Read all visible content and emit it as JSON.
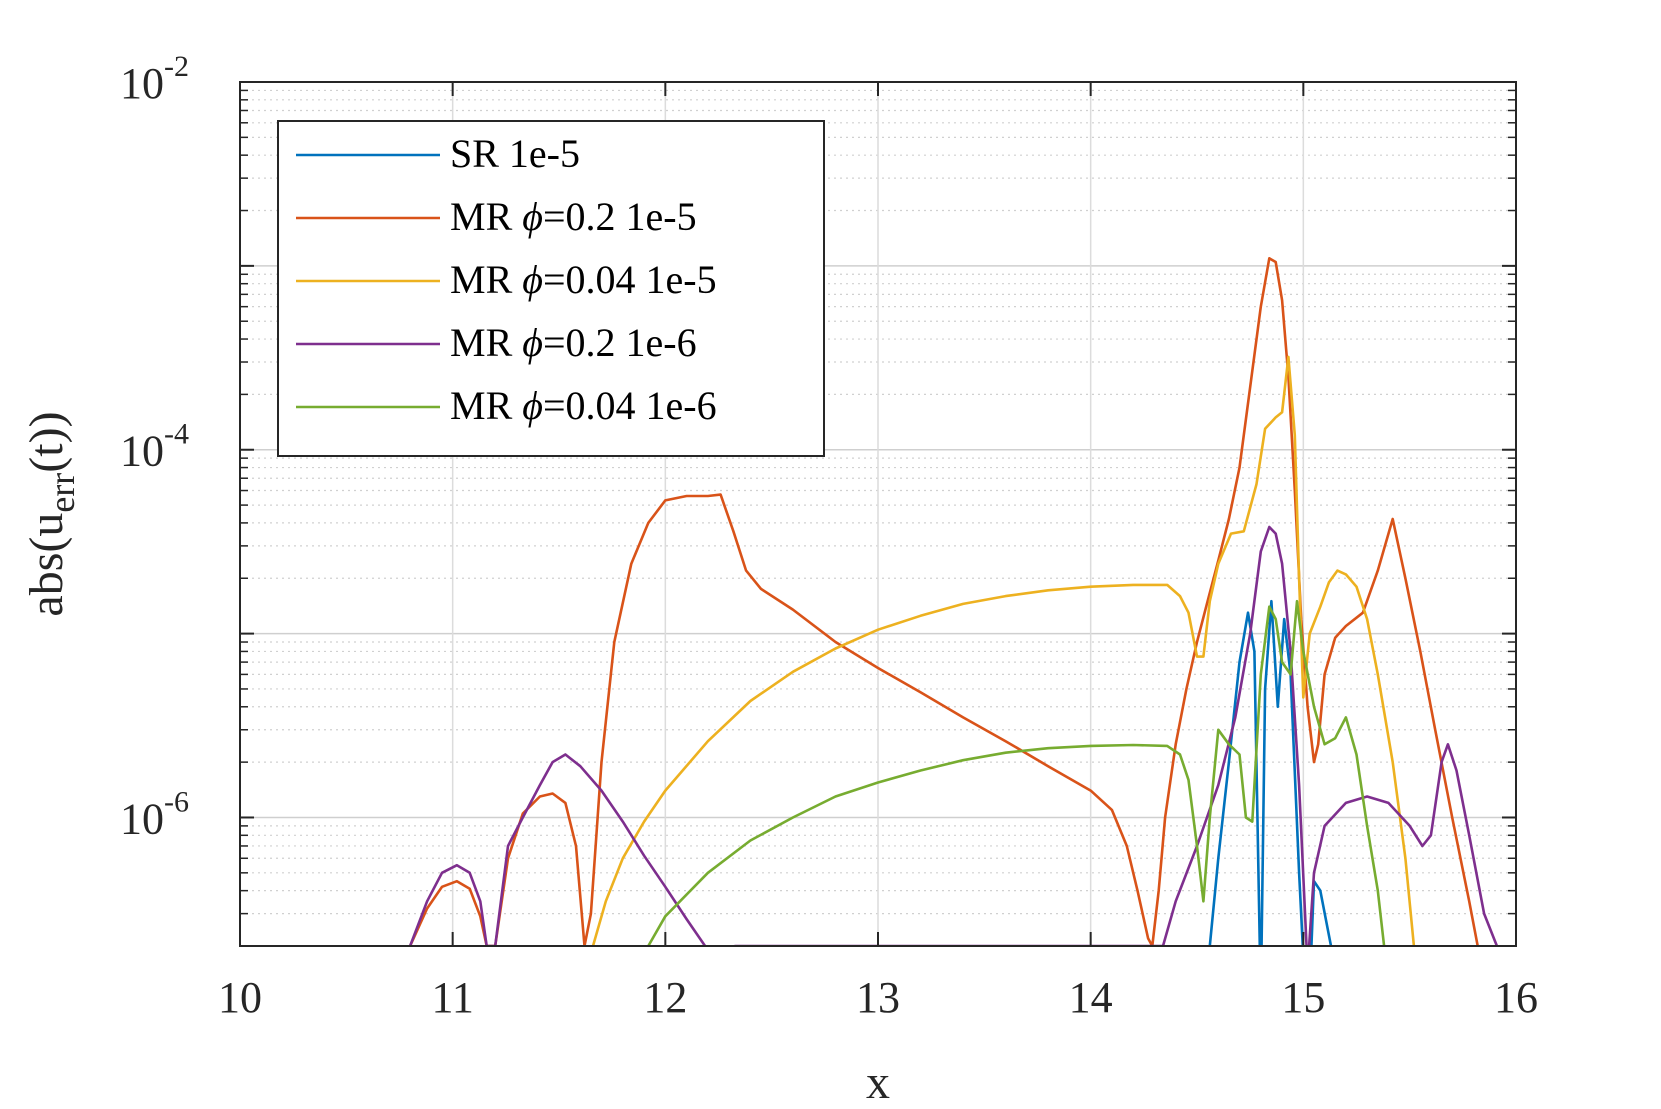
{
  "chart_data": {
    "type": "line",
    "title": "",
    "xlabel": "x",
    "ylabel": {
      "prefix": "abs(u",
      "subscript": "err",
      "suffix": "(t))"
    },
    "xlim": [
      10,
      16
    ],
    "ylim": [
      2e-07,
      0.01
    ],
    "yscale": "log",
    "grid": true,
    "minor_grid": true,
    "legend_position": "top-left",
    "x_ticks": [
      "10",
      "11",
      "12",
      "13",
      "14",
      "15",
      "16"
    ],
    "y_ticks": [
      {
        "base": "10",
        "exp": "-6",
        "value": 1e-06
      },
      {
        "base": "10",
        "exp": "-4",
        "value": 0.0001
      },
      {
        "base": "10",
        "exp": "-2",
        "value": 0.01
      }
    ],
    "series": [
      {
        "name": "SR 1e-5",
        "legend_parts": [
          "SR 1e-5"
        ],
        "color": "#0072BD",
        "points": [
          [
            14.56,
            2e-07
          ],
          [
            14.6,
            6e-07
          ],
          [
            14.65,
            2e-06
          ],
          [
            14.7,
            7e-06
          ],
          [
            14.74,
            1.3e-05
          ],
          [
            14.77,
            8e-06
          ],
          [
            14.8,
            1e-07
          ],
          [
            14.82,
            5e-06
          ],
          [
            14.85,
            1.5e-05
          ],
          [
            14.88,
            4e-06
          ],
          [
            14.91,
            1.2e-05
          ],
          [
            14.94,
            6e-06
          ],
          [
            14.98,
            5e-07
          ],
          [
            15.02,
            6e-08
          ],
          [
            15.05,
            4.5e-07
          ],
          [
            15.08,
            4e-07
          ],
          [
            15.13,
            2e-07
          ],
          [
            15.15,
            1e-07
          ]
        ]
      },
      {
        "name": "MR ϕ=0.2 1e-5",
        "legend_parts": [
          "MR ",
          "ϕ",
          "=0.2 1e-5"
        ],
        "color": "#D95319",
        "points": [
          [
            10.8,
            2e-07
          ],
          [
            10.88,
            3.2e-07
          ],
          [
            10.95,
            4.2e-07
          ],
          [
            11.02,
            4.5e-07
          ],
          [
            11.08,
            4.1e-07
          ],
          [
            11.13,
            2.9e-07
          ],
          [
            11.16,
            2e-07
          ],
          [
            11.2,
            2e-07
          ],
          [
            11.26,
            6e-07
          ],
          [
            11.33,
            1.05e-06
          ],
          [
            11.41,
            1.3e-06
          ],
          [
            11.47,
            1.35e-06
          ],
          [
            11.53,
            1.2e-06
          ],
          [
            11.58,
            7e-07
          ],
          [
            11.62,
            2e-07
          ],
          [
            11.65,
            3e-07
          ],
          [
            11.7,
            2e-06
          ],
          [
            11.76,
            9e-06
          ],
          [
            11.84,
            2.4e-05
          ],
          [
            11.92,
            4e-05
          ],
          [
            12.0,
            5.3e-05
          ],
          [
            12.1,
            5.6e-05
          ],
          [
            12.2,
            5.6e-05
          ],
          [
            12.26,
            5.7e-05
          ],
          [
            12.32,
            3.6e-05
          ],
          [
            12.38,
            2.2e-05
          ],
          [
            12.45,
            1.75e-05
          ],
          [
            12.6,
            1.35e-05
          ],
          [
            12.8,
            9e-06
          ],
          [
            13.0,
            6.5e-06
          ],
          [
            13.2,
            4.8e-06
          ],
          [
            13.4,
            3.5e-06
          ],
          [
            13.6,
            2.6e-06
          ],
          [
            13.8,
            1.9e-06
          ],
          [
            14.0,
            1.4e-06
          ],
          [
            14.1,
            1.1e-06
          ],
          [
            14.17,
            7e-07
          ],
          [
            14.22,
            4e-07
          ],
          [
            14.27,
            2.2e-07
          ],
          [
            14.29,
            2e-07
          ],
          [
            14.32,
            4e-07
          ],
          [
            14.35,
            1e-06
          ],
          [
            14.4,
            2.5e-06
          ],
          [
            14.45,
            5e-06
          ],
          [
            14.5,
            9e-06
          ],
          [
            14.55,
            1.5e-05
          ],
          [
            14.6,
            2.5e-05
          ],
          [
            14.65,
            4.2e-05
          ],
          [
            14.7,
            8e-05
          ],
          [
            14.75,
            0.00022
          ],
          [
            14.8,
            0.0006
          ],
          [
            14.84,
            0.0011
          ],
          [
            14.87,
            0.00105
          ],
          [
            14.9,
            0.00065
          ],
          [
            14.93,
            0.00025
          ],
          [
            14.96,
            6e-05
          ],
          [
            14.99,
            1.2e-05
          ],
          [
            15.02,
            4e-06
          ],
          [
            15.05,
            2e-06
          ],
          [
            15.07,
            2.5e-06
          ],
          [
            15.1,
            6e-06
          ],
          [
            15.15,
            9.5e-06
          ],
          [
            15.2,
            1.1e-05
          ],
          [
            15.28,
            1.3e-05
          ],
          [
            15.35,
            2.2e-05
          ],
          [
            15.42,
            4.2e-05
          ],
          [
            15.48,
            2e-05
          ],
          [
            15.55,
            8e-06
          ],
          [
            15.62,
            3e-06
          ],
          [
            15.7,
            1e-06
          ],
          [
            15.78,
            3.5e-07
          ],
          [
            15.82,
            2e-07
          ]
        ]
      },
      {
        "name": "MR ϕ=0.04 1e-5",
        "legend_parts": [
          "MR ",
          "ϕ",
          "=0.04 1e-5"
        ],
        "color": "#EDB120",
        "points": [
          [
            11.66,
            2e-07
          ],
          [
            11.72,
            3.5e-07
          ],
          [
            11.8,
            6e-07
          ],
          [
            11.9,
            9.5e-07
          ],
          [
            12.0,
            1.4e-06
          ],
          [
            12.2,
            2.6e-06
          ],
          [
            12.4,
            4.3e-06
          ],
          [
            12.6,
            6.2e-06
          ],
          [
            12.8,
            8.3e-06
          ],
          [
            13.0,
            1.05e-05
          ],
          [
            13.2,
            1.25e-05
          ],
          [
            13.4,
            1.45e-05
          ],
          [
            13.6,
            1.6e-05
          ],
          [
            13.8,
            1.72e-05
          ],
          [
            14.0,
            1.8e-05
          ],
          [
            14.2,
            1.84e-05
          ],
          [
            14.36,
            1.84e-05
          ],
          [
            14.42,
            1.6e-05
          ],
          [
            14.46,
            1.3e-05
          ],
          [
            14.5,
            7.5e-06
          ],
          [
            14.53,
            7.5e-06
          ],
          [
            14.56,
            1.5e-05
          ],
          [
            14.6,
            2.4e-05
          ],
          [
            14.66,
            3.5e-05
          ],
          [
            14.72,
            3.6e-05
          ],
          [
            14.78,
            6.5e-05
          ],
          [
            14.82,
            0.00013
          ],
          [
            14.87,
            0.00015
          ],
          [
            14.9,
            0.00016
          ],
          [
            14.93,
            0.00032
          ],
          [
            14.96,
            0.00012
          ],
          [
            14.98,
            2e-05
          ],
          [
            15.0,
            4.5e-06
          ],
          [
            15.03,
            1e-05
          ],
          [
            15.08,
            1.4e-05
          ],
          [
            15.12,
            1.9e-05
          ],
          [
            15.16,
            2.2e-05
          ],
          [
            15.2,
            2.1e-05
          ],
          [
            15.25,
            1.8e-05
          ],
          [
            15.3,
            1.2e-05
          ],
          [
            15.35,
            6e-06
          ],
          [
            15.42,
            2e-06
          ],
          [
            15.48,
            6e-07
          ],
          [
            15.52,
            2e-07
          ]
        ]
      },
      {
        "name": "MR ϕ=0.2 1e-6",
        "legend_parts": [
          "MR ",
          "ϕ",
          "=0.2 1e-6"
        ],
        "color": "#7E2F8E",
        "points": [
          [
            10.8,
            2e-07
          ],
          [
            10.88,
            3.5e-07
          ],
          [
            10.95,
            5e-07
          ],
          [
            11.02,
            5.5e-07
          ],
          [
            11.08,
            5e-07
          ],
          [
            11.13,
            3.5e-07
          ],
          [
            11.16,
            2e-07
          ],
          [
            11.2,
            2e-07
          ],
          [
            11.26,
            7e-07
          ],
          [
            11.33,
            1e-06
          ],
          [
            11.41,
            1.5e-06
          ],
          [
            11.47,
            2e-06
          ],
          [
            11.53,
            2.2e-06
          ],
          [
            11.6,
            1.9e-06
          ],
          [
            11.7,
            1.4e-06
          ],
          [
            11.8,
            9.5e-07
          ],
          [
            11.9,
            6.2e-07
          ],
          [
            12.0,
            4.2e-07
          ],
          [
            12.1,
            2.8e-07
          ],
          [
            12.2,
            1.9e-07
          ],
          [
            12.33,
            2e-07
          ],
          [
            14.34,
            2e-07
          ],
          [
            14.4,
            3.5e-07
          ],
          [
            14.5,
            7e-07
          ],
          [
            14.6,
            1.5e-06
          ],
          [
            14.68,
            3.5e-06
          ],
          [
            14.75,
            1e-05
          ],
          [
            14.8,
            2.8e-05
          ],
          [
            14.84,
            3.8e-05
          ],
          [
            14.87,
            3.5e-05
          ],
          [
            14.9,
            2.4e-05
          ],
          [
            14.94,
            8e-06
          ],
          [
            14.98,
            1.5e-06
          ],
          [
            15.02,
            1.5e-07
          ],
          [
            15.05,
            5e-07
          ],
          [
            15.1,
            9e-07
          ],
          [
            15.2,
            1.2e-06
          ],
          [
            15.3,
            1.3e-06
          ],
          [
            15.4,
            1.2e-06
          ],
          [
            15.5,
            9e-07
          ],
          [
            15.56,
            7e-07
          ],
          [
            15.6,
            8e-07
          ],
          [
            15.65,
            2e-06
          ],
          [
            15.68,
            2.5e-06
          ],
          [
            15.72,
            1.8e-06
          ],
          [
            15.78,
            8e-07
          ],
          [
            15.85,
            3e-07
          ],
          [
            15.91,
            2e-07
          ]
        ]
      },
      {
        "name": "MR ϕ=0.04 1e-6",
        "legend_parts": [
          "MR ",
          "ϕ",
          "=0.04 1e-6"
        ],
        "color": "#77AC30",
        "points": [
          [
            11.92,
            2e-07
          ],
          [
            12.0,
            2.9e-07
          ],
          [
            12.2,
            5e-07
          ],
          [
            12.4,
            7.5e-07
          ],
          [
            12.6,
            1e-06
          ],
          [
            12.8,
            1.3e-06
          ],
          [
            13.0,
            1.55e-06
          ],
          [
            13.2,
            1.8e-06
          ],
          [
            13.4,
            2.05e-06
          ],
          [
            13.6,
            2.25e-06
          ],
          [
            13.8,
            2.38e-06
          ],
          [
            14.0,
            2.45e-06
          ],
          [
            14.2,
            2.48e-06
          ],
          [
            14.36,
            2.45e-06
          ],
          [
            14.42,
            2.2e-06
          ],
          [
            14.46,
            1.6e-06
          ],
          [
            14.5,
            7e-07
          ],
          [
            14.53,
            3.5e-07
          ],
          [
            14.56,
            1e-06
          ],
          [
            14.6,
            3e-06
          ],
          [
            14.65,
            2.5e-06
          ],
          [
            14.7,
            2.2e-06
          ],
          [
            14.73,
            1e-06
          ],
          [
            14.76,
            9.5e-07
          ],
          [
            14.8,
            6e-06
          ],
          [
            14.84,
            1.4e-05
          ],
          [
            14.87,
            1.2e-05
          ],
          [
            14.9,
            7e-06
          ],
          [
            14.94,
            6e-06
          ],
          [
            14.97,
            1.5e-05
          ],
          [
            15.0,
            8e-06
          ],
          [
            15.05,
            4e-06
          ],
          [
            15.1,
            2.5e-06
          ],
          [
            15.15,
            2.7e-06
          ],
          [
            15.2,
            3.5e-06
          ],
          [
            15.25,
            2.2e-06
          ],
          [
            15.3,
            9e-07
          ],
          [
            15.35,
            4e-07
          ],
          [
            15.38,
            2e-07
          ]
        ]
      }
    ]
  }
}
